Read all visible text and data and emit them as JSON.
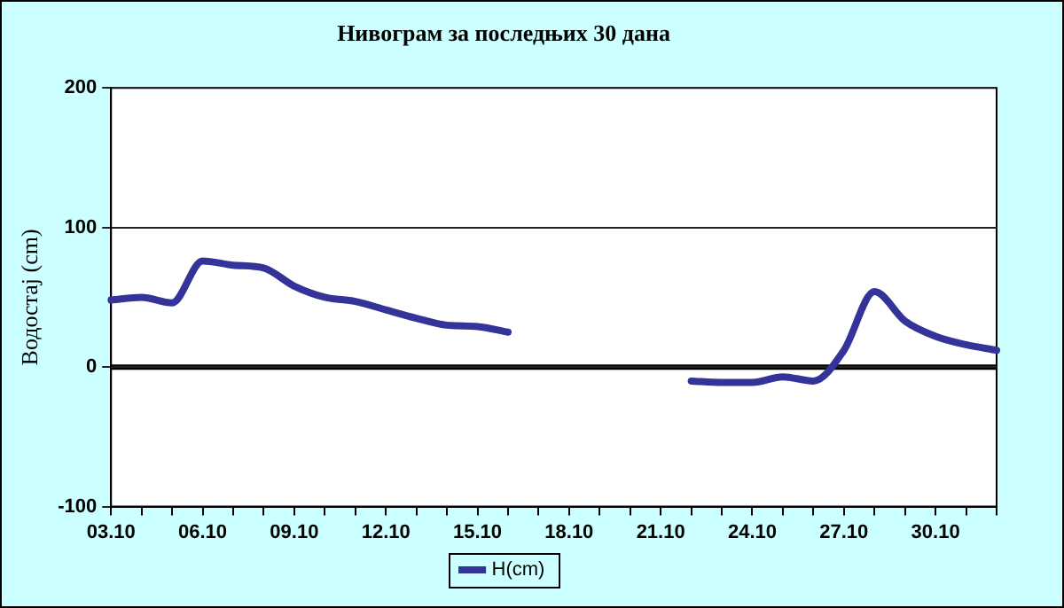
{
  "chart_data": {
    "type": "line",
    "title": "Нивограм за последњих 30 дана",
    "ylabel": "Водостај (cm)",
    "categories": [
      "03.10",
      null,
      null,
      "06.10",
      null,
      null,
      "09.10",
      null,
      null,
      "12.10",
      null,
      null,
      "15.10",
      null,
      null,
      "18.10",
      null,
      null,
      "21.10",
      null,
      null,
      "24.10",
      null,
      null,
      "27.10",
      null,
      null,
      "30.10",
      null,
      null
    ],
    "series": [
      {
        "name": "H(cm)",
        "color": "#333399",
        "values": [
          48,
          50,
          46,
          76,
          73,
          71,
          58,
          50,
          47,
          41,
          35,
          30,
          29,
          25,
          null,
          null,
          null,
          null,
          null,
          -10,
          -11,
          -11,
          -7,
          -10,
          12,
          54,
          33,
          22,
          16,
          12
        ]
      }
    ],
    "ylim": [
      -100,
      200
    ],
    "yticks": [
      -100,
      0,
      100,
      200
    ],
    "grid": "y",
    "legend": "bottom",
    "marker": "none",
    "line_style": "solid",
    "ref_lines": [
      {
        "axis": "y",
        "value": 0,
        "color": "#000000"
      }
    ]
  }
}
